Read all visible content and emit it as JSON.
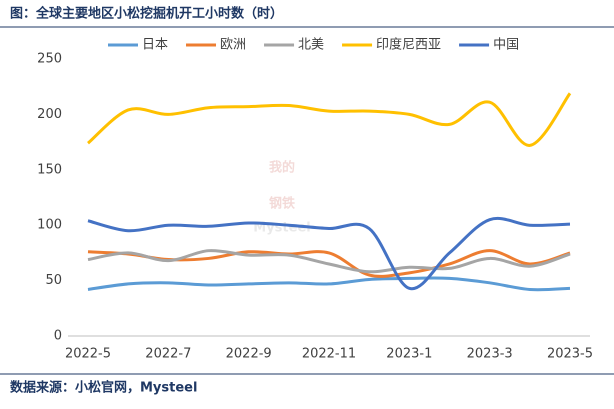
{
  "chart_data": {
    "type": "line",
    "title": "图：全球主要地区小松挖掘机开工小时数（时）",
    "source": "数据来源：小松官网，Mysteel",
    "watermark": [
      "我的",
      "钢铁",
      "Mysteel"
    ],
    "categories": [
      "2022-5",
      null,
      "2022-7",
      null,
      "2022-9",
      null,
      "2022-11",
      null,
      "2023-1",
      null,
      "2023-3",
      null,
      "2023-5"
    ],
    "series": [
      {
        "name": "日本",
        "color": "#5b9bd5",
        "values": [
          42,
          47,
          48,
          46,
          47,
          48,
          47,
          51,
          52,
          52,
          48,
          42,
          43
        ]
      },
      {
        "name": "欧洲",
        "color": "#ed7d31",
        "values": [
          76,
          74,
          69,
          70,
          76,
          74,
          75,
          55,
          57,
          65,
          77,
          65,
          75
        ]
      },
      {
        "name": "北美",
        "color": "#a5a5a5",
        "values": [
          69,
          75,
          68,
          77,
          73,
          73,
          65,
          58,
          62,
          61,
          70,
          63,
          74
        ]
      },
      {
        "name": "印度尼西亚",
        "color": "#ffc000",
        "values": [
          174,
          204,
          200,
          206,
          207,
          208,
          203,
          203,
          200,
          191,
          211,
          172,
          219
        ]
      },
      {
        "name": "中国",
        "color": "#4472c4",
        "values": [
          104,
          95,
          100,
          99,
          102,
          100,
          97,
          97,
          43,
          75,
          105,
          100,
          101
        ]
      }
    ],
    "ylim": [
      0,
      250
    ],
    "yticks": [
      0,
      50,
      100,
      150,
      200,
      250
    ],
    "legend": "top"
  }
}
